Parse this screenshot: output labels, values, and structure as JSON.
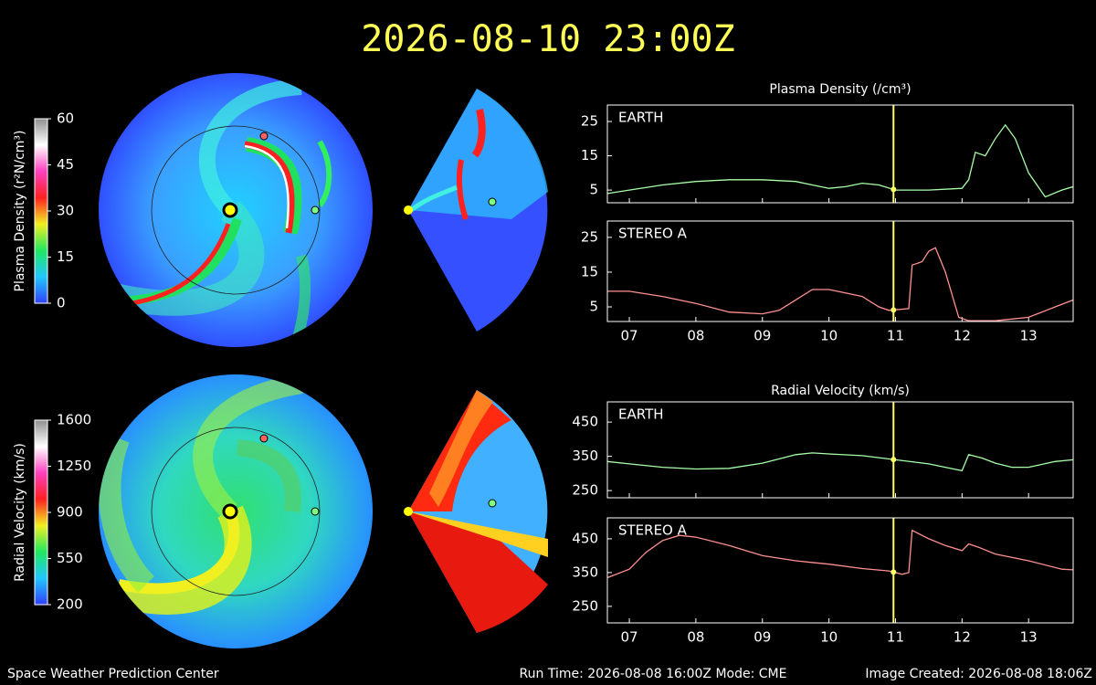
{
  "title": "2026-08-10 23:00Z",
  "footer": {
    "left": "Space Weather Prediction Center",
    "center": "Run Time: 2026-08-08 16:00Z  Mode: CME",
    "right": "Image Created: 2026-08-08 18:06Z"
  },
  "chart_data": [
    {
      "type": "colorbar",
      "label": "Plasma Density (r²N/cm³)",
      "ylim": [
        0,
        60
      ],
      "yticks": [
        0,
        15,
        30,
        45,
        60
      ],
      "colors": [
        "#3040ff",
        "#20c8ff",
        "#20e860",
        "#f0f020",
        "#ff2020",
        "#ff40c0",
        "#ffffff",
        "#909090"
      ]
    },
    {
      "type": "colorbar",
      "label": "Radial Velocity (km/s)",
      "ylim": [
        200,
        1600
      ],
      "yticks": [
        200,
        550,
        900,
        1250,
        1600
      ],
      "colors": [
        "#3040ff",
        "#20c8ff",
        "#20e860",
        "#f0f020",
        "#ff2020",
        "#ff40c0",
        "#ffffff",
        "#909090"
      ]
    },
    {
      "type": "line",
      "title": "Plasma Density (/cm³)",
      "show_xtick_labels": false,
      "x": [
        6.67,
        7,
        7.5,
        8,
        8.5,
        9,
        9.5,
        9.75,
        10,
        10.25,
        10.5,
        10.75,
        11,
        11.5,
        12,
        12.1,
        12.2,
        12.35,
        12.5,
        12.65,
        12.8,
        13,
        13.25,
        13.5,
        13.67
      ],
      "series": [
        {
          "name": "EARTH",
          "color": "#a8ffa8",
          "values": [
            4,
            5,
            6.5,
            7.5,
            8,
            8,
            7.5,
            6.5,
            5.5,
            6,
            7,
            6.5,
            5,
            5,
            5.5,
            8,
            16,
            15,
            20,
            24,
            20,
            10,
            3,
            5,
            6
          ]
        }
      ],
      "xlim": [
        6.67,
        13.67
      ],
      "xticks": [
        {
          "value": 7,
          "label": "07"
        },
        {
          "value": 8,
          "label": "08"
        },
        {
          "value": 9,
          "label": "09"
        },
        10,
        11,
        12,
        13
      ],
      "ylim": [
        1.3,
        29.8
      ],
      "yticks": [
        5,
        15,
        25
      ],
      "current_time": 10.97,
      "current_time_color": "#ffff66"
    },
    {
      "type": "line",
      "show_xtick_labels": true,
      "x": [
        6.67,
        7,
        7.5,
        8,
        8.5,
        9,
        9.25,
        9.5,
        9.75,
        10,
        10.25,
        10.5,
        10.75,
        10.9,
        11.2,
        11.25,
        11.4,
        11.5,
        11.6,
        11.75,
        11.95,
        12.1,
        12.5,
        13,
        13.4,
        13.67
      ],
      "series": [
        {
          "name": "STEREO A",
          "color": "#ff9090",
          "values": [
            9.5,
            9.5,
            8,
            6,
            3.5,
            3,
            4,
            7,
            10,
            10,
            9,
            8,
            5,
            4,
            4.5,
            17,
            18,
            21,
            22,
            15,
            2,
            1,
            1,
            2,
            5,
            7
          ]
        }
      ],
      "xlim": [
        6.67,
        13.67
      ],
      "xticks": [
        {
          "value": 7,
          "label": "07"
        },
        {
          "value": 8,
          "label": "08"
        },
        {
          "value": 9,
          "label": "09"
        },
        10,
        11,
        12,
        13
      ],
      "ylim": [
        0.8,
        29.7
      ],
      "yticks": [
        5,
        15,
        25
      ],
      "current_time": 10.97,
      "current_time_color": "#ffff66"
    },
    {
      "type": "line",
      "title": "Radial Velocity (km/s)",
      "show_xtick_labels": false,
      "x": [
        6.67,
        7,
        7.5,
        8,
        8.5,
        9,
        9.5,
        9.75,
        10,
        10.5,
        11,
        11.5,
        12,
        12.1,
        12.3,
        12.5,
        12.75,
        13,
        13.4,
        13.67
      ],
      "series": [
        {
          "name": "EARTH",
          "color": "#a8ffa8",
          "values": [
            335,
            328,
            318,
            313,
            315,
            330,
            355,
            360,
            357,
            352,
            340,
            328,
            308,
            355,
            345,
            330,
            318,
            318,
            335,
            340
          ]
        }
      ],
      "xlim": [
        6.67,
        13.67
      ],
      "xticks": [
        {
          "value": 7,
          "label": "07"
        },
        {
          "value": 8,
          "label": "08"
        },
        {
          "value": 9,
          "label": "09"
        },
        10,
        11,
        12,
        13
      ],
      "ylim": [
        229,
        509
      ],
      "yticks": [
        250,
        350,
        450
      ],
      "current_time": 10.97,
      "current_time_color": "#ffff66"
    },
    {
      "type": "line",
      "show_xtick_labels": true,
      "x": [
        6.67,
        7,
        7.25,
        7.5,
        7.75,
        8,
        8.5,
        9,
        9.5,
        10,
        10.5,
        10.9,
        11.1,
        11.2,
        11.25,
        11.5,
        11.75,
        12,
        12.1,
        12.25,
        12.5,
        13,
        13.5,
        13.67
      ],
      "series": [
        {
          "name": "STEREO A",
          "color": "#ff9090",
          "values": [
            335,
            360,
            410,
            445,
            460,
            455,
            430,
            400,
            385,
            375,
            362,
            355,
            345,
            350,
            475,
            450,
            430,
            415,
            435,
            425,
            405,
            385,
            360,
            358
          ]
        }
      ],
      "xlim": [
        6.67,
        13.67
      ],
      "xticks": [
        {
          "value": 7,
          "label": "07"
        },
        {
          "value": 8,
          "label": "08"
        },
        {
          "value": 9,
          "label": "09"
        },
        10,
        11,
        12,
        13
      ],
      "ylim": [
        201,
        512
      ],
      "yticks": [
        250,
        350,
        450
      ],
      "current_time": 10.97,
      "current_time_color": "#ffff66"
    }
  ]
}
